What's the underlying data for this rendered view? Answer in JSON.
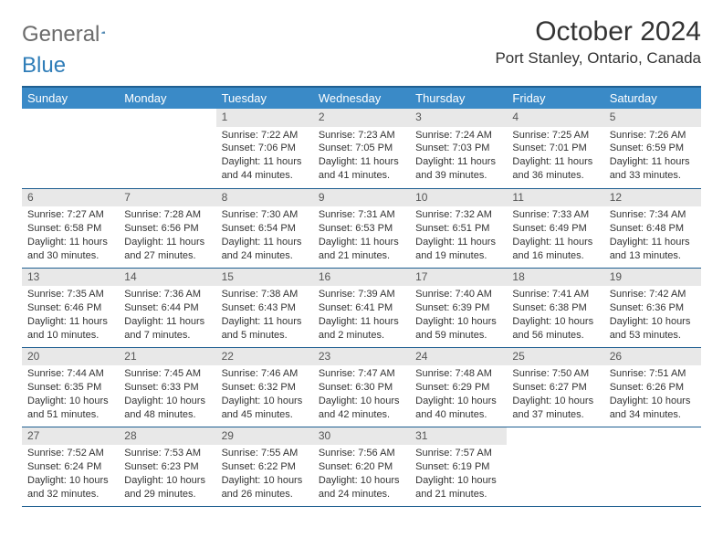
{
  "logo": {
    "text1": "General",
    "text2": "Blue"
  },
  "title": "October 2024",
  "location": "Port Stanley, Ontario, Canada",
  "colors": {
    "header_bg": "#3a8ac7",
    "header_border": "#1f5f91",
    "daynum_bg": "#e8e8e8",
    "text": "#333333",
    "logo_gray": "#6b6b6b",
    "logo_blue": "#2f7db8",
    "page_bg": "#ffffff"
  },
  "days_of_week": [
    "Sunday",
    "Monday",
    "Tuesday",
    "Wednesday",
    "Thursday",
    "Friday",
    "Saturday"
  ],
  "weeks": [
    [
      null,
      null,
      {
        "n": "1",
        "sunrise": "Sunrise: 7:22 AM",
        "sunset": "Sunset: 7:06 PM",
        "day1": "Daylight: 11 hours",
        "day2": "and 44 minutes."
      },
      {
        "n": "2",
        "sunrise": "Sunrise: 7:23 AM",
        "sunset": "Sunset: 7:05 PM",
        "day1": "Daylight: 11 hours",
        "day2": "and 41 minutes."
      },
      {
        "n": "3",
        "sunrise": "Sunrise: 7:24 AM",
        "sunset": "Sunset: 7:03 PM",
        "day1": "Daylight: 11 hours",
        "day2": "and 39 minutes."
      },
      {
        "n": "4",
        "sunrise": "Sunrise: 7:25 AM",
        "sunset": "Sunset: 7:01 PM",
        "day1": "Daylight: 11 hours",
        "day2": "and 36 minutes."
      },
      {
        "n": "5",
        "sunrise": "Sunrise: 7:26 AM",
        "sunset": "Sunset: 6:59 PM",
        "day1": "Daylight: 11 hours",
        "day2": "and 33 minutes."
      }
    ],
    [
      {
        "n": "6",
        "sunrise": "Sunrise: 7:27 AM",
        "sunset": "Sunset: 6:58 PM",
        "day1": "Daylight: 11 hours",
        "day2": "and 30 minutes."
      },
      {
        "n": "7",
        "sunrise": "Sunrise: 7:28 AM",
        "sunset": "Sunset: 6:56 PM",
        "day1": "Daylight: 11 hours",
        "day2": "and 27 minutes."
      },
      {
        "n": "8",
        "sunrise": "Sunrise: 7:30 AM",
        "sunset": "Sunset: 6:54 PM",
        "day1": "Daylight: 11 hours",
        "day2": "and 24 minutes."
      },
      {
        "n": "9",
        "sunrise": "Sunrise: 7:31 AM",
        "sunset": "Sunset: 6:53 PM",
        "day1": "Daylight: 11 hours",
        "day2": "and 21 minutes."
      },
      {
        "n": "10",
        "sunrise": "Sunrise: 7:32 AM",
        "sunset": "Sunset: 6:51 PM",
        "day1": "Daylight: 11 hours",
        "day2": "and 19 minutes."
      },
      {
        "n": "11",
        "sunrise": "Sunrise: 7:33 AM",
        "sunset": "Sunset: 6:49 PM",
        "day1": "Daylight: 11 hours",
        "day2": "and 16 minutes."
      },
      {
        "n": "12",
        "sunrise": "Sunrise: 7:34 AM",
        "sunset": "Sunset: 6:48 PM",
        "day1": "Daylight: 11 hours",
        "day2": "and 13 minutes."
      }
    ],
    [
      {
        "n": "13",
        "sunrise": "Sunrise: 7:35 AM",
        "sunset": "Sunset: 6:46 PM",
        "day1": "Daylight: 11 hours",
        "day2": "and 10 minutes."
      },
      {
        "n": "14",
        "sunrise": "Sunrise: 7:36 AM",
        "sunset": "Sunset: 6:44 PM",
        "day1": "Daylight: 11 hours",
        "day2": "and 7 minutes."
      },
      {
        "n": "15",
        "sunrise": "Sunrise: 7:38 AM",
        "sunset": "Sunset: 6:43 PM",
        "day1": "Daylight: 11 hours",
        "day2": "and 5 minutes."
      },
      {
        "n": "16",
        "sunrise": "Sunrise: 7:39 AM",
        "sunset": "Sunset: 6:41 PM",
        "day1": "Daylight: 11 hours",
        "day2": "and 2 minutes."
      },
      {
        "n": "17",
        "sunrise": "Sunrise: 7:40 AM",
        "sunset": "Sunset: 6:39 PM",
        "day1": "Daylight: 10 hours",
        "day2": "and 59 minutes."
      },
      {
        "n": "18",
        "sunrise": "Sunrise: 7:41 AM",
        "sunset": "Sunset: 6:38 PM",
        "day1": "Daylight: 10 hours",
        "day2": "and 56 minutes."
      },
      {
        "n": "19",
        "sunrise": "Sunrise: 7:42 AM",
        "sunset": "Sunset: 6:36 PM",
        "day1": "Daylight: 10 hours",
        "day2": "and 53 minutes."
      }
    ],
    [
      {
        "n": "20",
        "sunrise": "Sunrise: 7:44 AM",
        "sunset": "Sunset: 6:35 PM",
        "day1": "Daylight: 10 hours",
        "day2": "and 51 minutes."
      },
      {
        "n": "21",
        "sunrise": "Sunrise: 7:45 AM",
        "sunset": "Sunset: 6:33 PM",
        "day1": "Daylight: 10 hours",
        "day2": "and 48 minutes."
      },
      {
        "n": "22",
        "sunrise": "Sunrise: 7:46 AM",
        "sunset": "Sunset: 6:32 PM",
        "day1": "Daylight: 10 hours",
        "day2": "and 45 minutes."
      },
      {
        "n": "23",
        "sunrise": "Sunrise: 7:47 AM",
        "sunset": "Sunset: 6:30 PM",
        "day1": "Daylight: 10 hours",
        "day2": "and 42 minutes."
      },
      {
        "n": "24",
        "sunrise": "Sunrise: 7:48 AM",
        "sunset": "Sunset: 6:29 PM",
        "day1": "Daylight: 10 hours",
        "day2": "and 40 minutes."
      },
      {
        "n": "25",
        "sunrise": "Sunrise: 7:50 AM",
        "sunset": "Sunset: 6:27 PM",
        "day1": "Daylight: 10 hours",
        "day2": "and 37 minutes."
      },
      {
        "n": "26",
        "sunrise": "Sunrise: 7:51 AM",
        "sunset": "Sunset: 6:26 PM",
        "day1": "Daylight: 10 hours",
        "day2": "and 34 minutes."
      }
    ],
    [
      {
        "n": "27",
        "sunrise": "Sunrise: 7:52 AM",
        "sunset": "Sunset: 6:24 PM",
        "day1": "Daylight: 10 hours",
        "day2": "and 32 minutes."
      },
      {
        "n": "28",
        "sunrise": "Sunrise: 7:53 AM",
        "sunset": "Sunset: 6:23 PM",
        "day1": "Daylight: 10 hours",
        "day2": "and 29 minutes."
      },
      {
        "n": "29",
        "sunrise": "Sunrise: 7:55 AM",
        "sunset": "Sunset: 6:22 PM",
        "day1": "Daylight: 10 hours",
        "day2": "and 26 minutes."
      },
      {
        "n": "30",
        "sunrise": "Sunrise: 7:56 AM",
        "sunset": "Sunset: 6:20 PM",
        "day1": "Daylight: 10 hours",
        "day2": "and 24 minutes."
      },
      {
        "n": "31",
        "sunrise": "Sunrise: 7:57 AM",
        "sunset": "Sunset: 6:19 PM",
        "day1": "Daylight: 10 hours",
        "day2": "and 21 minutes."
      },
      null,
      null
    ]
  ]
}
